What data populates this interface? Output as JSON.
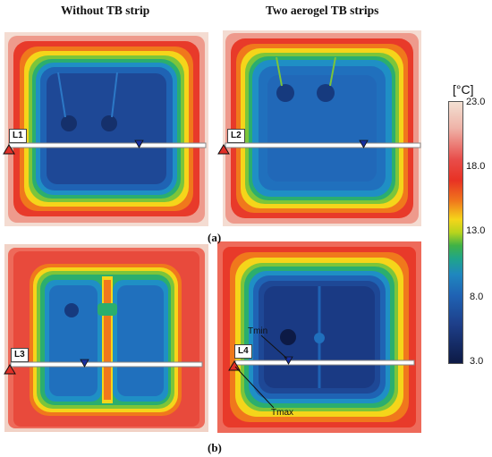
{
  "headers": {
    "left": "Without TB strip",
    "right": "Two aerogel TB strips"
  },
  "panel_labels": {
    "a": "(a)",
    "b": "(b)"
  },
  "line_tags": {
    "l1": "L1",
    "l2": "L2",
    "l3": "L3",
    "l4": "L4"
  },
  "annotations": {
    "tmin": "Tmin",
    "tmax": "Tmax"
  },
  "scale": {
    "unit": "[°C]",
    "ticks": [
      "23.0",
      "18.0",
      "13.0",
      "8.0",
      "3.0"
    ]
  },
  "colors": {
    "hot": "#e83224",
    "warm": "#f5d51a",
    "mid": "#3fb246",
    "cool": "#1f87bf",
    "cold": "#1e3f8a",
    "marker_max": "#e03028",
    "marker_min": "#1830a0"
  }
}
